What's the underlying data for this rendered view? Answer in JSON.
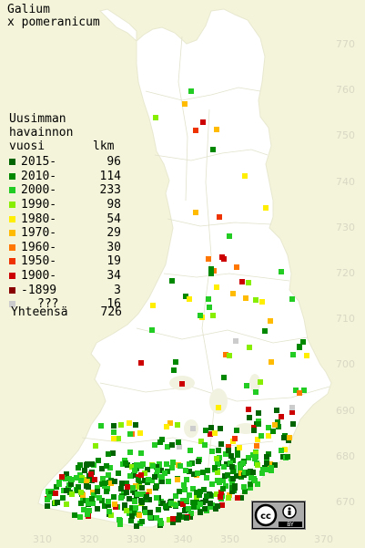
{
  "title_line1": "Galium",
  "title_line2": "x pomeranicum",
  "legend_heading": [
    "Uusimman",
    "havainnon",
    "vuosi",
    "lkm"
  ],
  "legend": [
    {
      "label": "2015-",
      "count": "96",
      "color": "#006400"
    },
    {
      "label": "2010-",
      "count": "114",
      "color": "#008800"
    },
    {
      "label": "2000-",
      "count": "233",
      "color": "#22cc22"
    },
    {
      "label": "1990-",
      "count": "98",
      "color": "#88ee00"
    },
    {
      "label": "1980-",
      "count": "54",
      "color": "#ffee00"
    },
    {
      "label": "1970-",
      "count": "29",
      "color": "#ffbb00"
    },
    {
      "label": "1960-",
      "count": "30",
      "color": "#ff7700"
    },
    {
      "label": "1950-",
      "count": "19",
      "color": "#ee3300"
    },
    {
      "label": "1900-",
      "count": "34",
      "color": "#cc0000"
    },
    {
      "label": "-1899",
      "count": "3",
      "color": "#880000"
    },
    {
      "label": "???",
      "count": "16",
      "color": "#cccccc"
    }
  ],
  "total_label": "Yhteensä",
  "total_count": "726",
  "y_axis_labels": [
    "770",
    "760",
    "750",
    "740",
    "730",
    "720",
    "710",
    "700",
    "690",
    "680",
    "670"
  ],
  "x_axis_labels": [
    "310",
    "320",
    "330",
    "340",
    "350",
    "360",
    "370"
  ],
  "license_badge": "cc-by-icon",
  "license_text": "BY",
  "map_fill": "#ffffff",
  "background": "#f4f4da"
}
